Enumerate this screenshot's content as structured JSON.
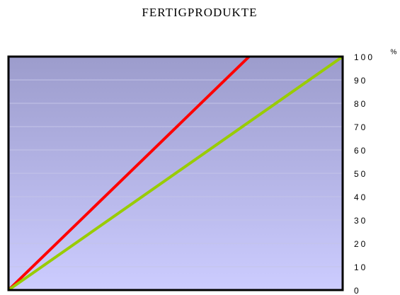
{
  "chart_data": {
    "type": "line",
    "title": "FERTIGPRODUKTE",
    "y_label": "%",
    "xlim": [
      0,
      100
    ],
    "ylim": [
      0,
      100
    ],
    "yticks": [
      0,
      10,
      20,
      30,
      40,
      50,
      60,
      70,
      80,
      90,
      100
    ],
    "grid": true,
    "series": [
      {
        "color": "#ff0000",
        "x": [
          0,
          72
        ],
        "values": [
          0,
          100
        ]
      },
      {
        "color": "#99cc00",
        "x": [
          0,
          100
        ],
        "values": [
          0,
          100
        ]
      }
    ]
  }
}
